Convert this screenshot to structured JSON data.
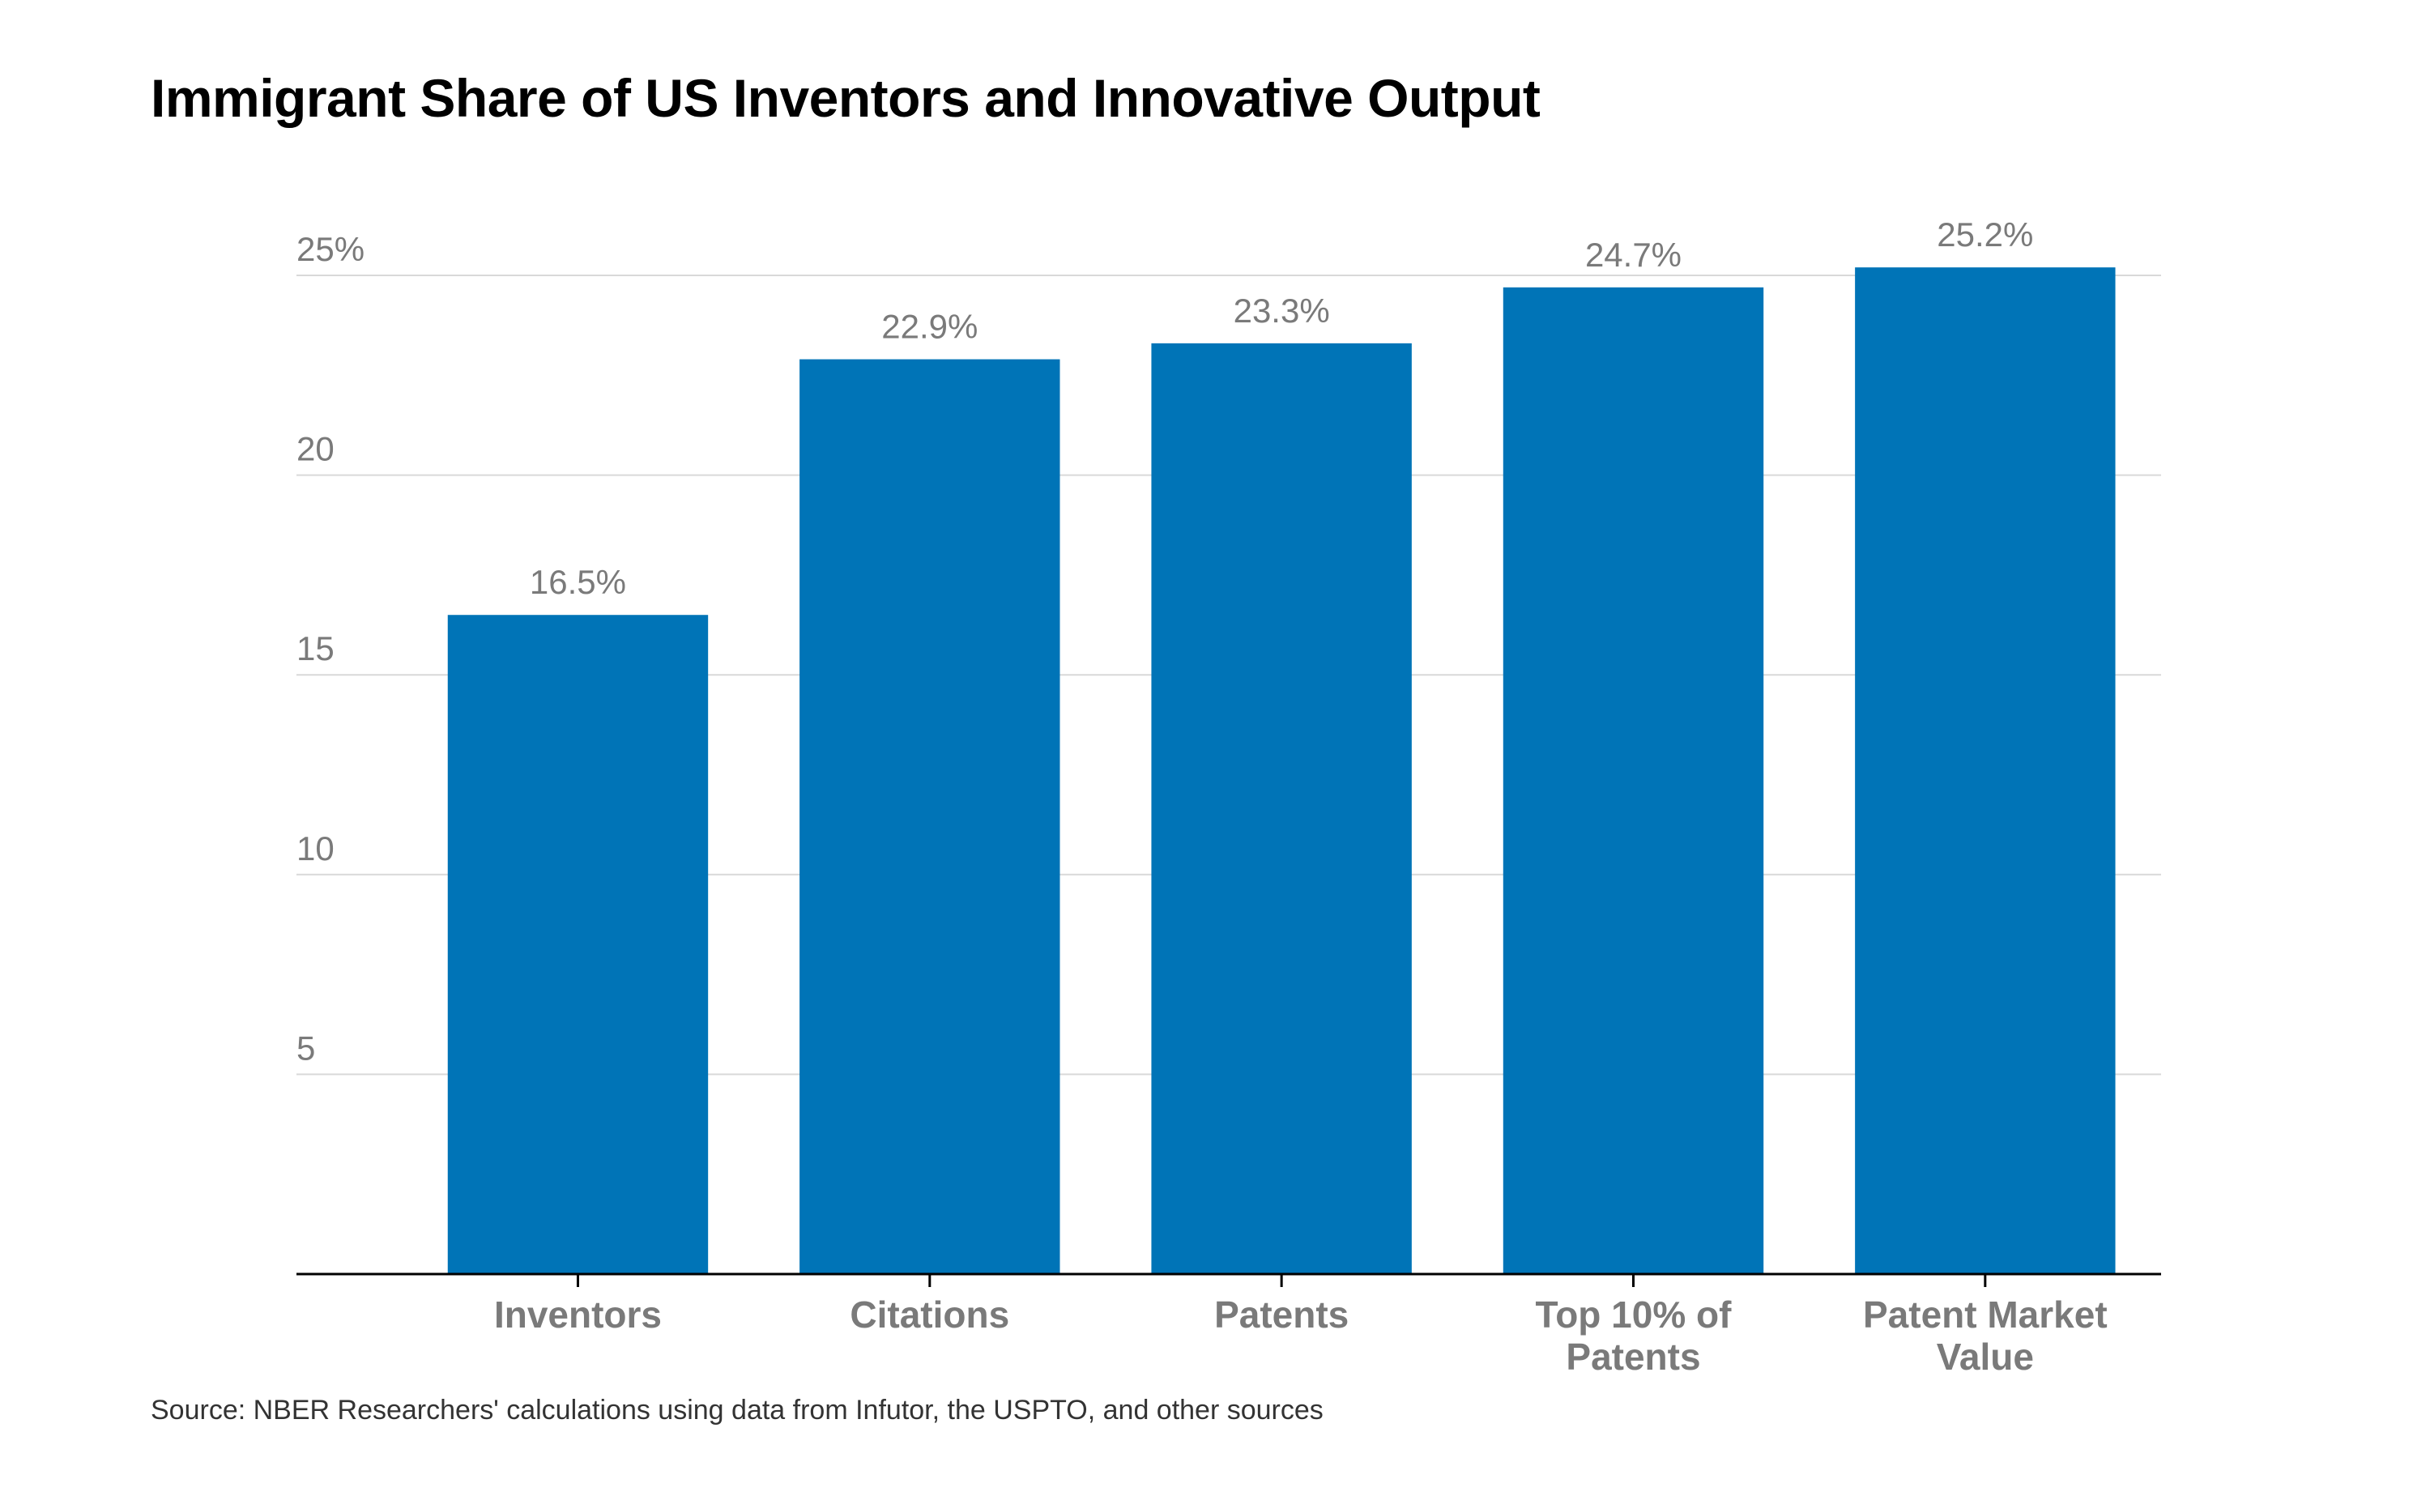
{
  "chart_data": {
    "type": "bar",
    "title": "Immigrant Share of US Inventors and Innovative Output",
    "categories": [
      [
        "Inventors"
      ],
      [
        "Citations"
      ],
      [
        "Patents"
      ],
      [
        "Top 10% of",
        "Patents"
      ],
      [
        "Patent Market",
        "Value"
      ]
    ],
    "values": [
      16.5,
      22.9,
      23.3,
      24.7,
      25.2
    ],
    "value_labels": [
      "16.5%",
      "22.9%",
      "23.3%",
      "24.7%",
      "25.2%"
    ],
    "y_ticks": [
      {
        "value": 5,
        "label": "5"
      },
      {
        "value": 10,
        "label": "10"
      },
      {
        "value": 15,
        "label": "15"
      },
      {
        "value": 20,
        "label": "20"
      },
      {
        "value": 25,
        "label": "25%"
      }
    ],
    "xlabel": "",
    "ylabel": "",
    "ylim": [
      0,
      25
    ],
    "grid": true,
    "legend": "none",
    "colors": {
      "bar": "#0074b7",
      "gridline": "#d9d9d9",
      "axis": "#000000",
      "text_muted": "#7a7a7a"
    }
  },
  "source": "Source: NBER Researchers' calculations using data from Infutor, the USPTO, and other sources"
}
